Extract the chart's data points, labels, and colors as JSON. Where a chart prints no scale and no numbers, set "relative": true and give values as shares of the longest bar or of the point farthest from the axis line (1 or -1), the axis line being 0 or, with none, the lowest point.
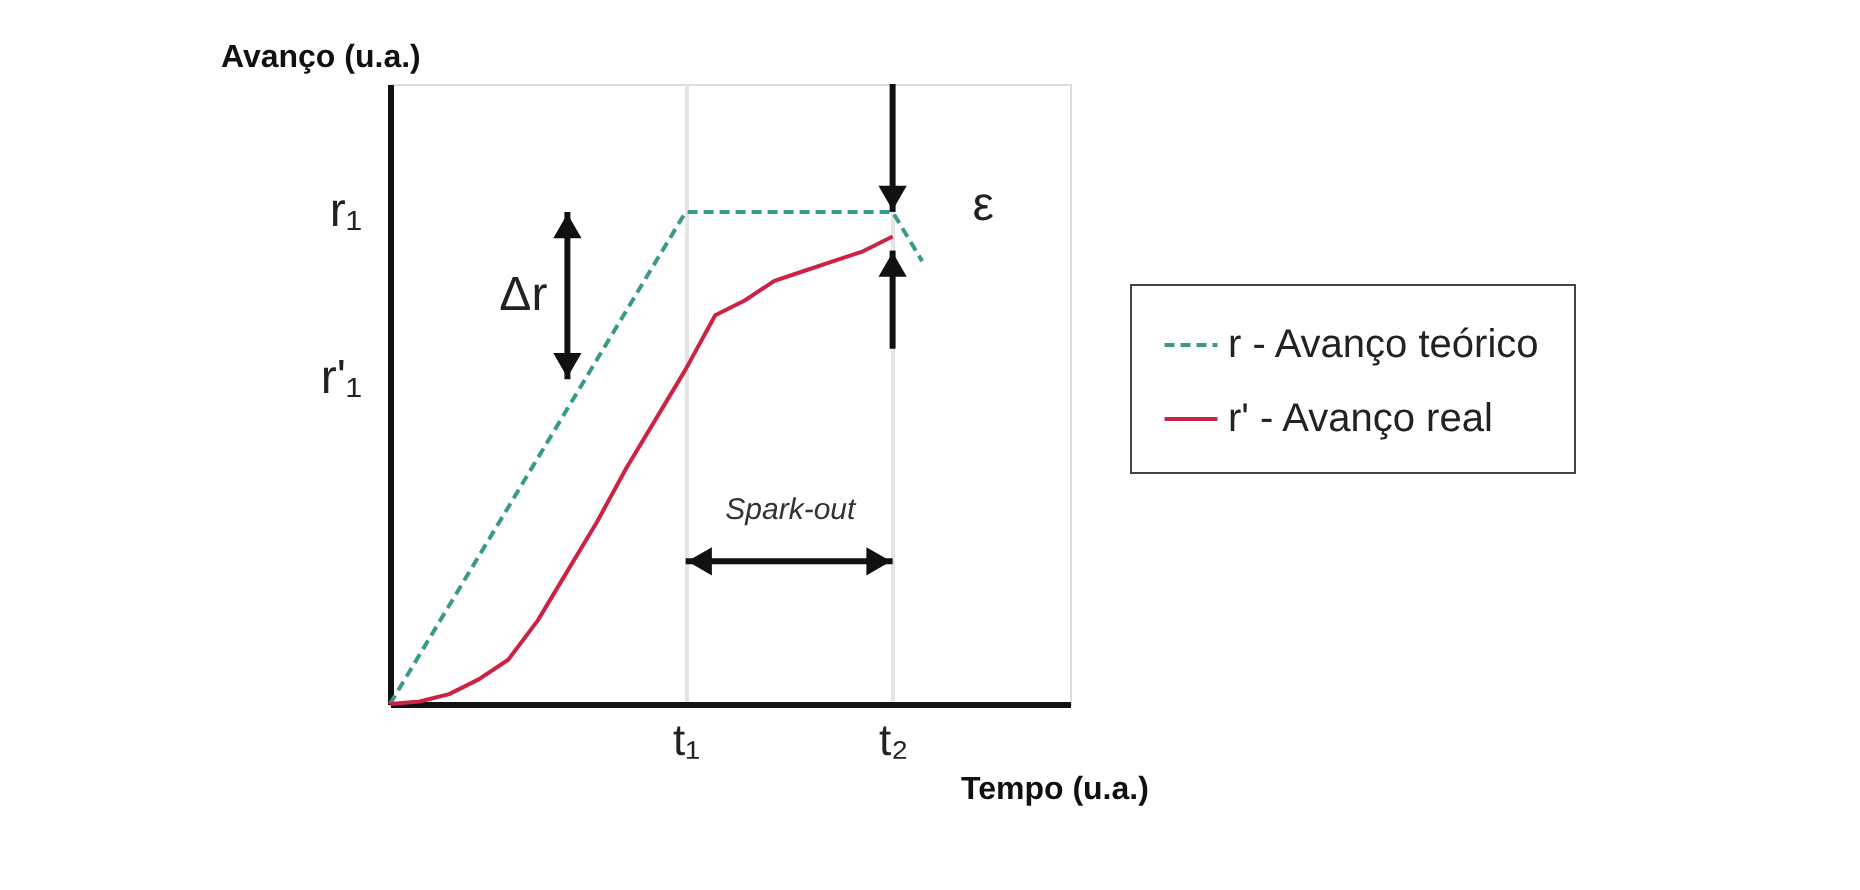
{
  "chart_data": {
    "type": "line",
    "relative": true,
    "xlabel": "Tempo (u.a.)",
    "ylabel": "Avanço (u.a.)",
    "categories": [
      null,
      null,
      null,
      null,
      null,
      null,
      null,
      null,
      null,
      null,
      "t₁",
      null,
      null,
      null,
      null,
      null,
      null,
      "t₂",
      null,
      null,
      null,
      null,
      null,
      null
    ],
    "series": [
      {
        "name": "r - Avanço teórico",
        "color": "#3a9a8a",
        "line_style": "dashed",
        "values": [
          0,
          0.1,
          0.2,
          0.3,
          0.4,
          0.5,
          0.6,
          0.7,
          0.8,
          0.9,
          1,
          1,
          1,
          1,
          1,
          1,
          1,
          1,
          0.9,
          null,
          null,
          null,
          null,
          null
        ]
      },
      {
        "name": "r' - Avanço real",
        "color": "#cc2244",
        "line_style": "solid",
        "values": [
          0,
          0.005,
          0.02,
          0.05,
          0.09,
          0.17,
          0.27,
          0.37,
          0.48,
          0.58,
          0.68,
          0.79,
          0.82,
          0.86,
          0.88,
          0.9,
          0.92,
          0.95,
          null,
          null,
          null,
          null,
          null,
          null
        ]
      }
    ],
    "annotations": [
      "r₁",
      "r'₁",
      "Δr",
      "ε",
      "Spark-out"
    ],
    "grid": "x",
    "legend": "right",
    "marker": "none"
  }
}
